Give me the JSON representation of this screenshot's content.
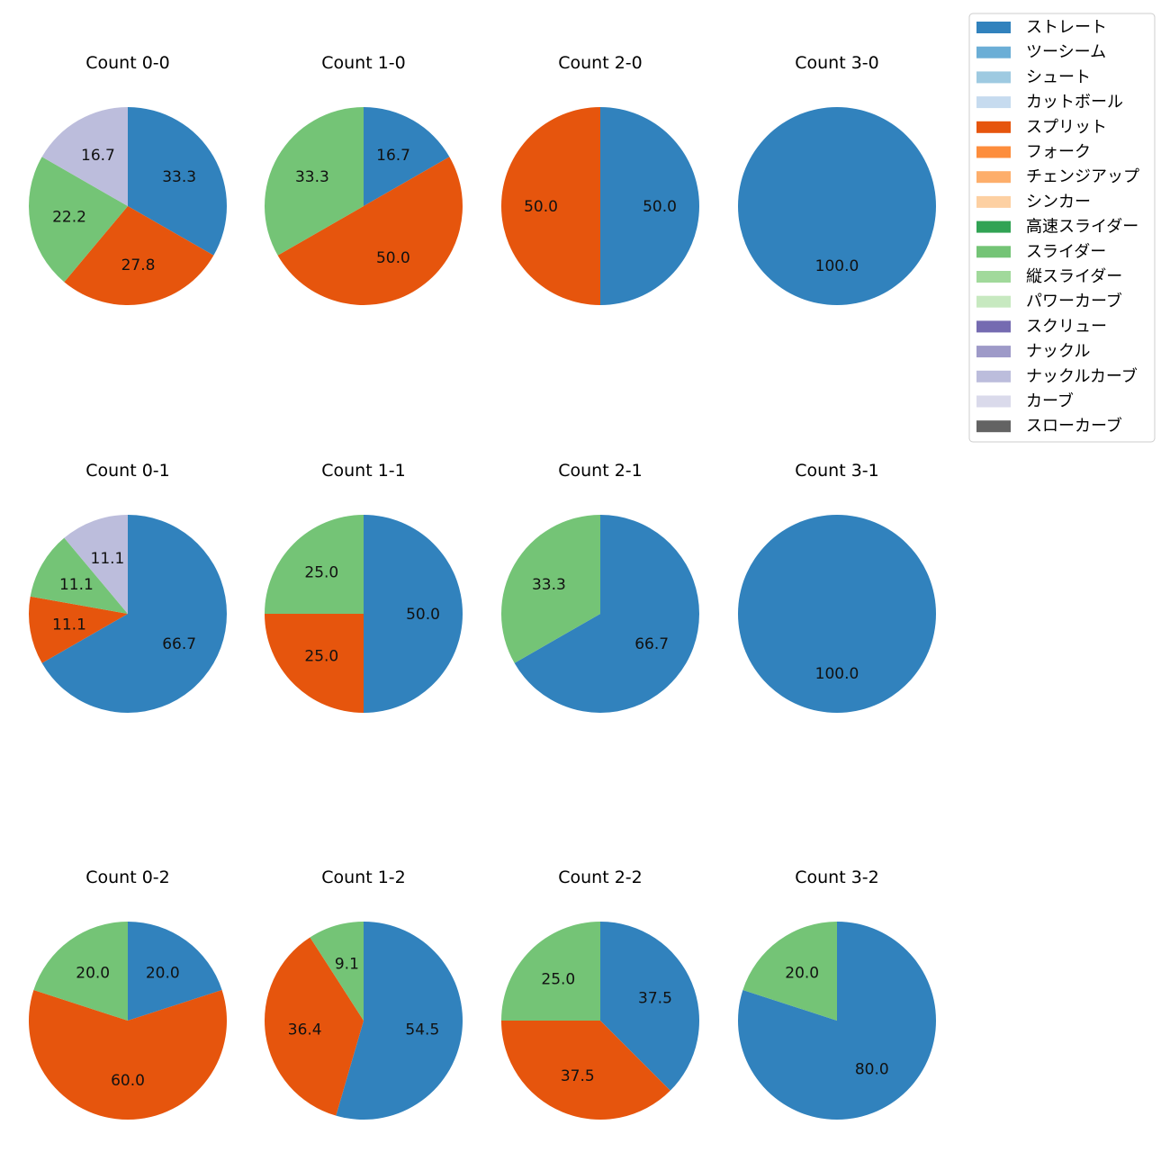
{
  "chart_data": {
    "type": "pie",
    "legend_position": "top-right",
    "categories": [
      {
        "name": "ストレート",
        "color": "#3182bd"
      },
      {
        "name": "ツーシーム",
        "color": "#6baed6"
      },
      {
        "name": "シュート",
        "color": "#9ecae1"
      },
      {
        "name": "カットボール",
        "color": "#c6dbef"
      },
      {
        "name": "スプリット",
        "color": "#e6550d"
      },
      {
        "name": "フォーク",
        "color": "#fd8d3c"
      },
      {
        "name": "チェンジアップ",
        "color": "#fdae6b"
      },
      {
        "name": "シンカー",
        "color": "#fdd0a2"
      },
      {
        "name": "高速スライダー",
        "color": "#31a354"
      },
      {
        "name": "スライダー",
        "color": "#74c476"
      },
      {
        "name": "縦スライダー",
        "color": "#a1d99b"
      },
      {
        "name": "パワーカーブ",
        "color": "#c7e9c0"
      },
      {
        "name": "スクリュー",
        "color": "#756bb1"
      },
      {
        "name": "ナックル",
        "color": "#9e9ac8"
      },
      {
        "name": "ナックルカーブ",
        "color": "#bcbddc"
      },
      {
        "name": "カーブ",
        "color": "#dadaeb"
      },
      {
        "name": "スローカーブ",
        "color": "#636363"
      }
    ],
    "pies": [
      {
        "title": "Count 0-0",
        "slices": [
          {
            "category": "ストレート",
            "value": 33.3,
            "label": "33.3"
          },
          {
            "category": "スプリット",
            "value": 27.8,
            "label": "27.8"
          },
          {
            "category": "スライダー",
            "value": 22.2,
            "label": "22.2"
          },
          {
            "category": "ナックルカーブ",
            "value": 16.7,
            "label": "16.7"
          }
        ]
      },
      {
        "title": "Count 1-0",
        "slices": [
          {
            "category": "ストレート",
            "value": 16.7,
            "label": "16.7"
          },
          {
            "category": "スプリット",
            "value": 50.0,
            "label": "50.0"
          },
          {
            "category": "スライダー",
            "value": 33.3,
            "label": "33.3"
          }
        ]
      },
      {
        "title": "Count 2-0",
        "slices": [
          {
            "category": "ストレート",
            "value": 50.0,
            "label": "50.0"
          },
          {
            "category": "スプリット",
            "value": 50.0,
            "label": "50.0"
          }
        ]
      },
      {
        "title": "Count 3-0",
        "slices": [
          {
            "category": "ストレート",
            "value": 100.0,
            "label": "100.0"
          }
        ]
      },
      {
        "title": "Count 0-1",
        "slices": [
          {
            "category": "ストレート",
            "value": 66.7,
            "label": "66.7"
          },
          {
            "category": "スプリット",
            "value": 11.1,
            "label": "11.1"
          },
          {
            "category": "スライダー",
            "value": 11.1,
            "label": "11.1"
          },
          {
            "category": "ナックルカーブ",
            "value": 11.1,
            "label": "11.1"
          }
        ]
      },
      {
        "title": "Count 1-1",
        "slices": [
          {
            "category": "ストレート",
            "value": 50.0,
            "label": "50.0"
          },
          {
            "category": "スプリット",
            "value": 25.0,
            "label": "25.0"
          },
          {
            "category": "スライダー",
            "value": 25.0,
            "label": "25.0"
          }
        ]
      },
      {
        "title": "Count 2-1",
        "slices": [
          {
            "category": "ストレート",
            "value": 66.7,
            "label": "66.7"
          },
          {
            "category": "スライダー",
            "value": 33.3,
            "label": "33.3"
          }
        ]
      },
      {
        "title": "Count 3-1",
        "slices": [
          {
            "category": "ストレート",
            "value": 100.0,
            "label": "100.0"
          }
        ]
      },
      {
        "title": "Count 0-2",
        "slices": [
          {
            "category": "ストレート",
            "value": 20.0,
            "label": "20.0"
          },
          {
            "category": "スプリット",
            "value": 60.0,
            "label": "60.0"
          },
          {
            "category": "スライダー",
            "value": 20.0,
            "label": "20.0"
          }
        ]
      },
      {
        "title": "Count 1-2",
        "slices": [
          {
            "category": "ストレート",
            "value": 54.5,
            "label": "54.5"
          },
          {
            "category": "スプリット",
            "value": 36.4,
            "label": "36.4"
          },
          {
            "category": "スライダー",
            "value": 9.1,
            "label": "9.1"
          }
        ]
      },
      {
        "title": "Count 2-2",
        "slices": [
          {
            "category": "ストレート",
            "value": 37.5,
            "label": "37.5"
          },
          {
            "category": "スプリット",
            "value": 37.5,
            "label": "37.5"
          },
          {
            "category": "スライダー",
            "value": 25.0,
            "label": "25.0"
          }
        ]
      },
      {
        "title": "Count 3-2",
        "slices": [
          {
            "category": "ストレート",
            "value": 80.0,
            "label": "80.0"
          },
          {
            "category": "スライダー",
            "value": 20.0,
            "label": "20.0"
          }
        ]
      }
    ]
  }
}
